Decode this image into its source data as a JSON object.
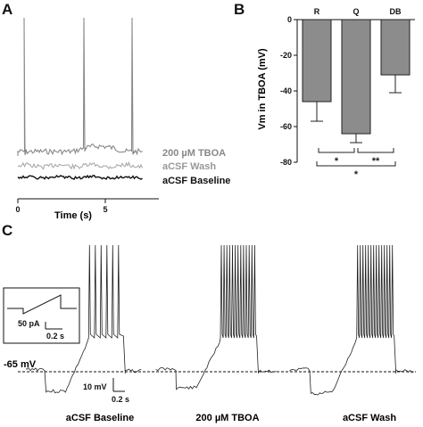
{
  "panels": {
    "a": "A",
    "b": "B",
    "c": "C"
  },
  "panel_a": {
    "xlabel": "Time (s)",
    "xticks": [
      "0",
      "5"
    ],
    "traces": [
      {
        "name": "200 µM TBOA",
        "color": "#888888"
      },
      {
        "name": "aCSF Wash",
        "color": "#aaaaaa"
      },
      {
        "name": "aCSF Baseline",
        "color": "#111111"
      }
    ]
  },
  "chart_data": [
    {
      "type": "bar",
      "categories": [
        "R",
        "Q",
        "DB"
      ],
      "values": [
        -46,
        -64,
        -31
      ],
      "errors": [
        11,
        5,
        10
      ],
      "ylabel": "Vm in TBOA (mV)",
      "ylim": [
        -80,
        0
      ],
      "yticks": [
        "0",
        "-20",
        "-40",
        "-60",
        "-80"
      ],
      "bar_color": "#8c8c8c",
      "significance": [
        {
          "pair": [
            "R",
            "Q"
          ],
          "label": "*"
        },
        {
          "pair": [
            "Q",
            "DB"
          ],
          "label": "**"
        },
        {
          "pair": [
            "R",
            "DB"
          ],
          "label": "*"
        }
      ]
    }
  ],
  "panel_c": {
    "threshold_label": "-65 mV",
    "inset": {
      "current": "50 pA",
      "time": "0.2 s"
    },
    "scalebar": {
      "voltage": "10 mV",
      "time": "0.2 s"
    },
    "conditions": [
      "aCSF Baseline",
      "200 µM TBOA",
      "aCSF Wash"
    ],
    "spike_counts": [
      6,
      13,
      14
    ]
  }
}
